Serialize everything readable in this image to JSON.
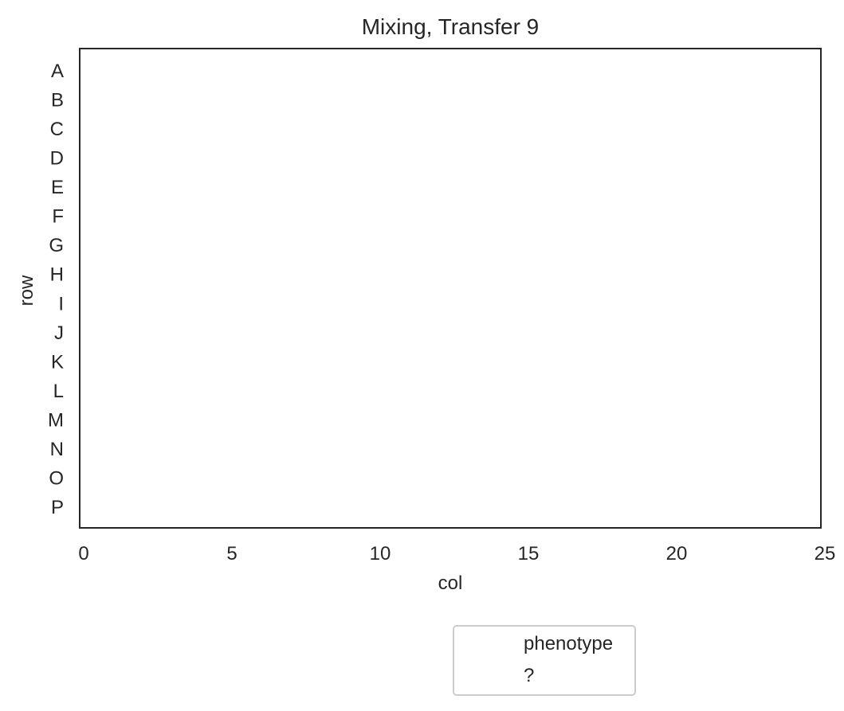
{
  "chart_data": {
    "type": "scatter",
    "title": "Mixing, Transfer 9",
    "xlabel": "col",
    "ylabel": "row",
    "xlim": [
      0,
      25
    ],
    "x_ticks": [
      0,
      5,
      10,
      15,
      20,
      25
    ],
    "y_categories": [
      "A",
      "B",
      "C",
      "D",
      "E",
      "F",
      "G",
      "H",
      "I",
      "J",
      "K",
      "L",
      "M",
      "N",
      "O",
      "P"
    ],
    "series": [],
    "grid": false,
    "legend": {
      "placement": "below",
      "entries": [
        "phenotype",
        "?"
      ]
    }
  },
  "colors": {
    "axes": "#262626",
    "legend_border": "#cccccc",
    "background": "#ffffff"
  }
}
